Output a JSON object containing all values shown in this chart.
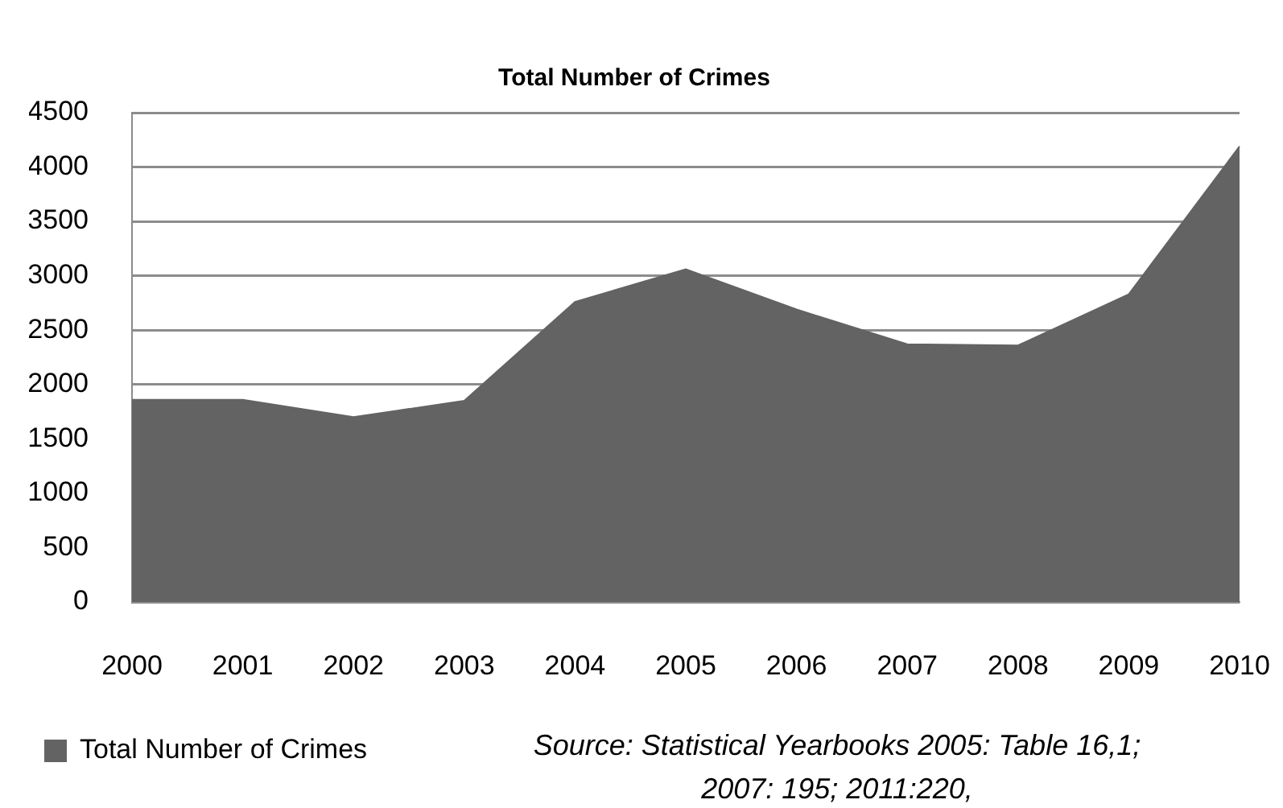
{
  "chart_data": {
    "type": "area",
    "title": "Total Number of Crimes",
    "categories": [
      "2000",
      "2001",
      "2002",
      "2003",
      "2004",
      "2005",
      "2006",
      "2007",
      "2008",
      "2009",
      "2010"
    ],
    "series": [
      {
        "name": "Total Number of Crimes",
        "color": "#636363",
        "values": [
          1860,
          1860,
          1700,
          1850,
          2760,
          3060,
          2690,
          2370,
          2360,
          2830,
          4190
        ]
      }
    ],
    "ylim": [
      0,
      4500
    ],
    "yticks": [
      0,
      500,
      1000,
      1500,
      2000,
      2500,
      3000,
      3500,
      4000,
      4500
    ],
    "grid": "y",
    "legend": "bottom left",
    "annotations": [
      "Source: Statistical Yearbooks 2005: Table 16,1; 2007: 195; 2011:220,"
    ]
  }
}
